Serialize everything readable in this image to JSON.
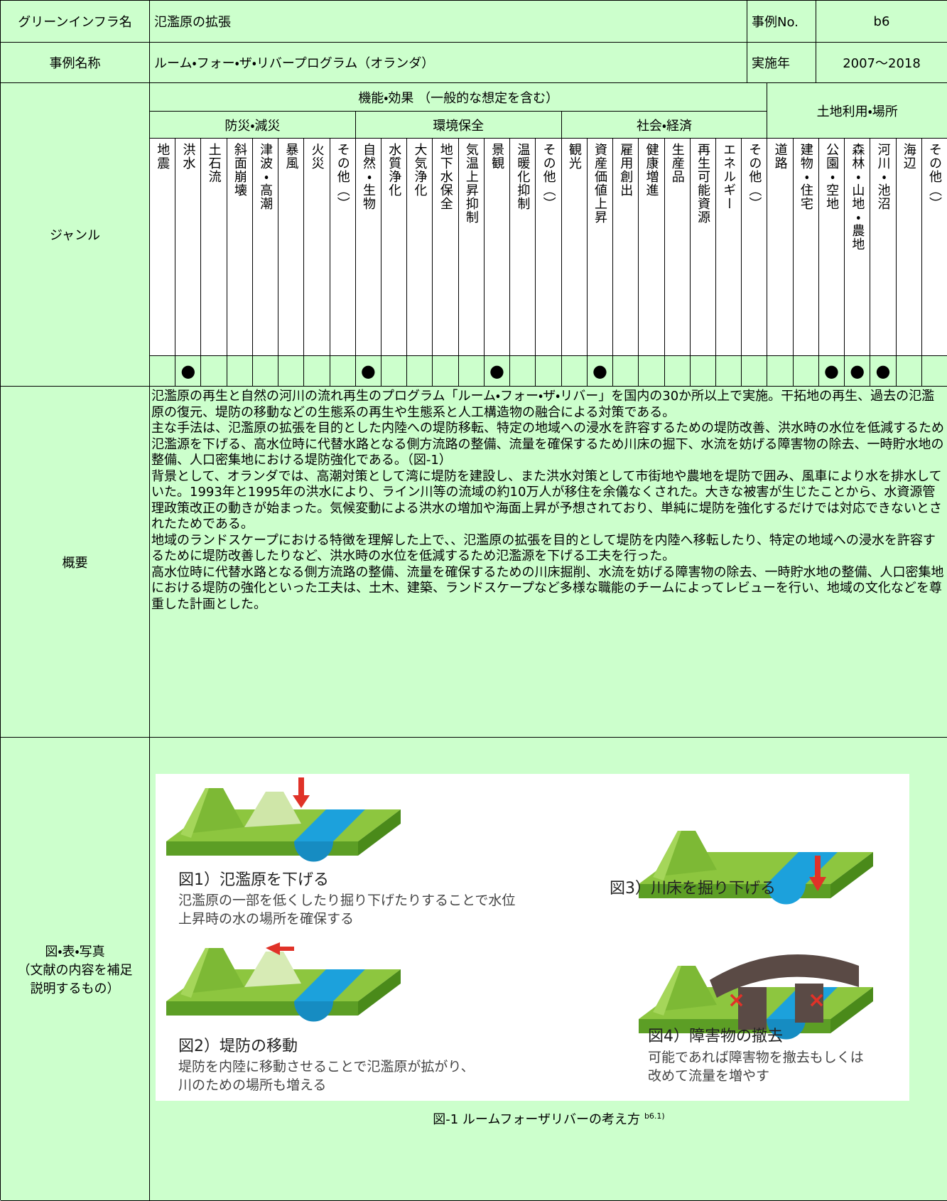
{
  "header": {
    "name_label": "グリーンインフラ名",
    "name": "氾濫原の拡張",
    "no_label": "事例No.",
    "no": "b6",
    "case_label": "事例名称",
    "case": "ルーム・フォー・ザ・リバープログラム（オランダ）",
    "year_label": "実施年",
    "year": "2007〜2018"
  },
  "genre": {
    "label": "ジャンル",
    "function_title": "機能・効果 （一般的な想定を含む）",
    "groups": [
      {
        "name": "防災・減災",
        "items": [
          {
            "label": "地震"
          },
          {
            "label": "洪水",
            "mark": "●"
          },
          {
            "label": "土石流"
          },
          {
            "label": "斜面崩壊"
          },
          {
            "label": "津波・高潮"
          },
          {
            "label": "暴風"
          },
          {
            "label": "火災"
          },
          {
            "label": "その他（）"
          }
        ]
      },
      {
        "name": "環境保全",
        "items": [
          {
            "label": "自然・生物",
            "mark": "●"
          },
          {
            "label": "水質浄化"
          },
          {
            "label": "大気浄化"
          },
          {
            "label": "地下水保全"
          },
          {
            "label": "気温上昇抑制"
          },
          {
            "label": "景観",
            "mark": "●"
          },
          {
            "label": "温暖化抑制"
          },
          {
            "label": "その他（）"
          }
        ]
      },
      {
        "name": "社会・経済",
        "items": [
          {
            "label": "観光"
          },
          {
            "label": "資産価値上昇",
            "mark": "●"
          },
          {
            "label": "雇用創出"
          },
          {
            "label": "健康増進"
          },
          {
            "label": "生産品"
          },
          {
            "label": "再生可能資源"
          },
          {
            "label": "エネルギー"
          },
          {
            "label": "その他（）"
          }
        ]
      },
      {
        "name": "土地利用・場所",
        "items": [
          {
            "label": "道路"
          },
          {
            "label": "建物・住宅"
          },
          {
            "label": "公園・空地",
            "mark": "●"
          },
          {
            "label": "森林・山地・農地",
            "mark": "●"
          },
          {
            "label": "河川・池沼",
            "mark": "●"
          },
          {
            "label": "海辺"
          },
          {
            "label": "その他（）"
          }
        ]
      }
    ]
  },
  "summary": {
    "label": "概要",
    "paragraphs": [
      "氾濫原の再生と自然の河川の流れ再生のプログラム「ルーム・フォー・ザ・リバー」を国内の30か所以上で実施。干拓地の再生、過去の氾濫原の復元、堤防の移動などの生態系の再生や生態系と人工構造物の融合による対策である。",
      "主な手法は、氾濫原の拡張を目的とした内陸への堤防移転、特定の地域への浸水を許容するための堤防改善、洪水時の水位を低減するため氾濫源を下げる、高水位時に代替水路となる側方流路の整備、流量を確保するため川床の掘下、水流を妨げる障害物の除去、一時貯水地の整備、人口密集地における堤防強化である。（図-1）",
      "背景として、オランダでは、高潮対策として湾に堤防を建設し、また洪水対策として市街地や農地を堤防で囲み、風車により水を排水していた。1993年と1995年の洪水により、ライン川等の流域の約10万人が移住を余儀なくされた。大きな被害が生じたことから、水資源管理政策改正の動きが始まった。気候変動による洪水の増加や海面上昇が予想されており、単純に堤防を強化するだけでは対応できないとされたためである。",
      "地域のランドスケープにおける特徴を理解した上で、、氾濫原の拡張を目的として堤防を内陸へ移転したり、特定の地域への浸水を許容するために堤防改善したりなど、洪水時の水位を低減するため氾濫源を下げる工夫を行った。",
      "高水位時に代替水路となる側方流路の整備、流量を確保するための川床掘削、水流を妨げる障害物の除去、一時貯水地の整備、人口密集地における堤防の強化といった工夫は、土木、建築、ランドスケープなど多様な職能のチームによってレビューを行い、地域の文化などを尊重した計画とした。"
    ]
  },
  "figure": {
    "label_lines": [
      "図・表・写真",
      "（文献の内容を補足",
      "説明するもの）"
    ],
    "panels": [
      {
        "title": "図1）氾濫原を下げる",
        "lines": [
          "氾濫原の一部を低くしたり掘り下げたりすることで水位",
          "上昇時の水の場所を確保する"
        ]
      },
      {
        "title": "図2）堤防の移動",
        "lines": [
          "堤防を内陸に移動させることで氾濫原が拡がり、",
          "川のための場所も増える"
        ]
      },
      {
        "title": "図3）川床を掘り下げる",
        "lines": []
      },
      {
        "title": "図4）障害物の撤去",
        "lines": [
          "可能であれば障害物を撤去もしくは",
          "改めて流量を増やす"
        ]
      }
    ],
    "caption": "図-1 ルームフォーザリバーの考え方",
    "caption_ref": "b6.1)"
  }
}
